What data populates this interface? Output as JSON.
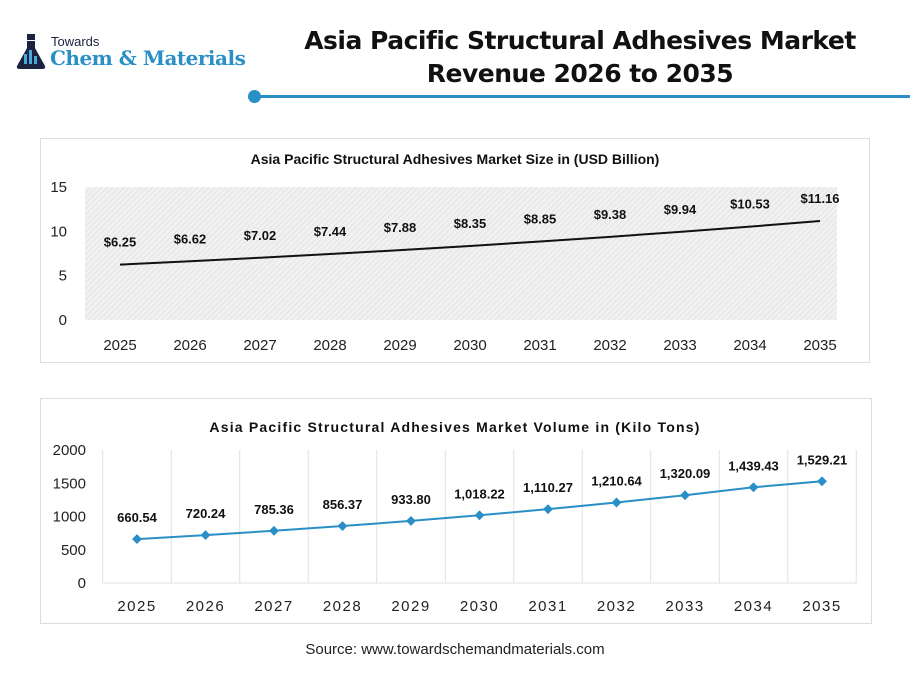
{
  "header": {
    "logo_top": "Towards",
    "logo_main": "Chem & Materials",
    "title_line1": "Asia Pacific Structural Adhesives Market",
    "title_line2": "Revenue 2026 to 2035",
    "accent_color": "#2a8fc6"
  },
  "chart_data": [
    {
      "type": "line",
      "title": "Asia Pacific Structural Adhesives Market Size in (USD Billion)",
      "categories": [
        "2025",
        "2026",
        "2027",
        "2028",
        "2029",
        "2030",
        "2031",
        "2032",
        "2033",
        "2034",
        "2035"
      ],
      "values": [
        6.25,
        6.62,
        7.02,
        7.44,
        7.88,
        8.35,
        8.85,
        9.38,
        9.94,
        10.53,
        11.16
      ],
      "data_labels": [
        "$6.25",
        "$6.62",
        "$7.02",
        "$7.44",
        "$7.88",
        "$8.35",
        "$8.85",
        "$9.38",
        "$9.94",
        "$10.53",
        "$11.16"
      ],
      "ylim": [
        0,
        15
      ],
      "yticks": [
        "0",
        "5",
        "10",
        "15"
      ],
      "line_color": "#111111",
      "plot_background": "hatched light gray",
      "grid": false
    },
    {
      "type": "line",
      "title": "Asia Pacific Structural Adhesives Market Volume in (Kilo Tons)",
      "categories": [
        "2025",
        "2026",
        "2027",
        "2028",
        "2029",
        "2030",
        "2031",
        "2032",
        "2033",
        "2034",
        "2035"
      ],
      "values": [
        660.54,
        720.24,
        785.36,
        856.37,
        933.8,
        1018.22,
        1110.27,
        1210.64,
        1320.09,
        1439.43,
        1529.21
      ],
      "data_labels": [
        "660.54",
        "720.24",
        "785.36",
        "856.37",
        "933.80",
        "1,018.22",
        "1,110.27",
        "1,210.64",
        "1,320.09",
        "1,439.43",
        "1,529.21"
      ],
      "ylim": [
        0,
        2000
      ],
      "yticks": [
        "0",
        "500",
        "1000",
        "1500",
        "2000"
      ],
      "line_color": "#2a8fc6",
      "markers": "diamond",
      "grid": "vertical"
    }
  ],
  "footer": {
    "source": "Source: www.towardschemandmaterials.com"
  }
}
